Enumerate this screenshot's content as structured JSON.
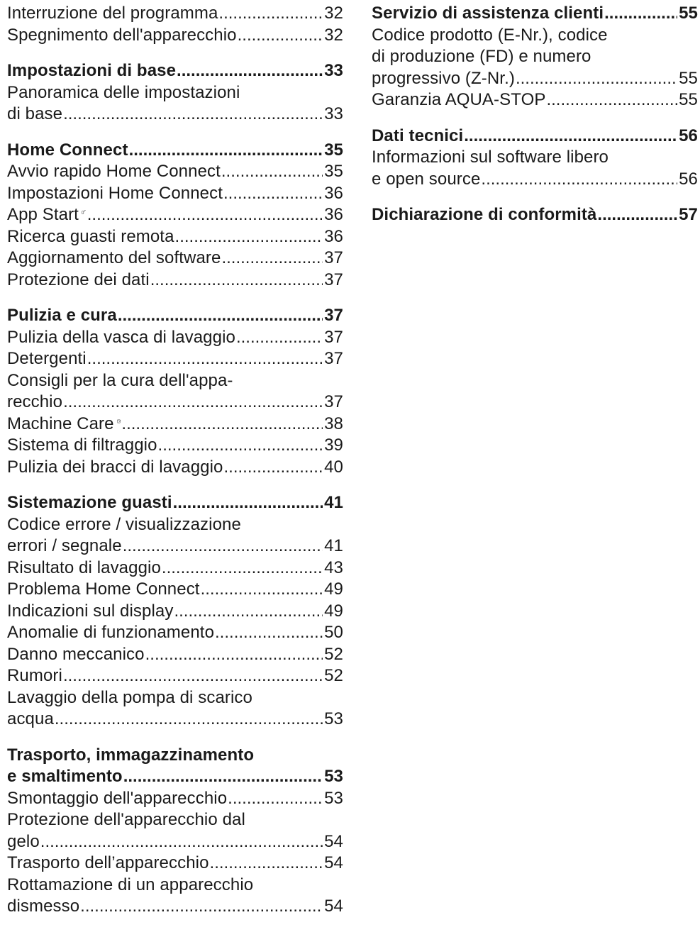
{
  "left_column": [
    {
      "entries": [
        {
          "lines": [],
          "last": "Interruzione del programma",
          "page": "32"
        },
        {
          "lines": [],
          "last": "Spegnimento dell'apparecchio",
          "page": "32"
        }
      ]
    },
    {
      "heading": {
        "lines": [],
        "last": "Impostazioni di base",
        "page": "33"
      },
      "entries": [
        {
          "lines": [
            "Panoramica delle impostazioni"
          ],
          "last": "di base",
          "page": "33"
        }
      ]
    },
    {
      "heading": {
        "lines": [],
        "last": "Home Connect",
        "page": "35"
      },
      "entries": [
        {
          "lines": [],
          "last": "Avvio rapido Home Connect",
          "page": "35"
        },
        {
          "lines": [],
          "last": "Impostazioni Home Connect",
          "page": "36"
        },
        {
          "lines": [],
          "last": "App Start",
          "page": "36",
          "icon": "remote-start-icon"
        },
        {
          "lines": [],
          "last": "Ricerca guasti remota",
          "page": "36"
        },
        {
          "lines": [],
          "last": "Aggiornamento del software",
          "page": "37"
        },
        {
          "lines": [],
          "last": "Protezione dei dati",
          "page": "37"
        }
      ]
    },
    {
      "heading": {
        "lines": [],
        "last": "Pulizia e cura",
        "page": "37"
      },
      "entries": [
        {
          "lines": [],
          "last": "Pulizia della vasca di lavaggio",
          "page": "37"
        },
        {
          "lines": [],
          "last": "Detergenti",
          "page": "37"
        },
        {
          "lines": [
            "Consigli per la cura dell'appa-"
          ],
          "last": "recchio",
          "page": "37"
        },
        {
          "lines": [],
          "last": "Machine Care",
          "page": "38",
          "icon": "machine-care-icon"
        },
        {
          "lines": [],
          "last": "Sistema di filtraggio",
          "page": "39"
        },
        {
          "lines": [],
          "last": "Pulizia dei bracci di lavaggio",
          "page": "40"
        }
      ]
    },
    {
      "heading": {
        "lines": [],
        "last": "Sistemazione guasti",
        "page": "41"
      },
      "entries": [
        {
          "lines": [
            "Codice errore / visualizzazione"
          ],
          "last": "errori / segnale",
          "page": "41"
        },
        {
          "lines": [],
          "last": "Risultato di lavaggio",
          "page": "43"
        },
        {
          "lines": [],
          "last": "Problema Home Connect",
          "page": "49"
        },
        {
          "lines": [],
          "last": "Indicazioni sul display",
          "page": "49"
        },
        {
          "lines": [],
          "last": "Anomalie di funzionamento",
          "page": "50"
        },
        {
          "lines": [],
          "last": "Danno meccanico",
          "page": "52"
        },
        {
          "lines": [],
          "last": "Rumori",
          "page": "52"
        },
        {
          "lines": [
            "Lavaggio della pompa di scarico"
          ],
          "last": "acqua",
          "page": "53"
        }
      ]
    },
    {
      "heading": {
        "lines": [
          "Trasporto, immagazzinamento"
        ],
        "last": "e smaltimento",
        "page": "53"
      },
      "entries": [
        {
          "lines": [],
          "last": "Smontaggio dell'apparecchio",
          "page": "53"
        },
        {
          "lines": [
            "Protezione dell'apparecchio dal"
          ],
          "last": "gelo",
          "page": "54"
        },
        {
          "lines": [],
          "last": "Trasporto dell’apparecchio",
          "page": "54"
        },
        {
          "lines": [
            "Rottamazione di un apparecchio"
          ],
          "last": "dismesso",
          "page": "54"
        }
      ]
    }
  ],
  "right_column": [
    {
      "heading": {
        "lines": [],
        "last": "Servizio di assistenza clienti",
        "page": "55"
      },
      "entries": [
        {
          "lines": [
            "Codice prodotto (E-Nr.), codice",
            "di produzione (FD) e numero"
          ],
          "last": "progressivo (Z-Nr.)",
          "page": "55"
        },
        {
          "lines": [],
          "last": "Garanzia AQUA-STOP",
          "page": "55"
        }
      ]
    },
    {
      "heading": {
        "lines": [],
        "last": "Dati tecnici",
        "page": "56"
      },
      "entries": [
        {
          "lines": [
            "Informazioni sul software libero"
          ],
          "last": "e open source",
          "page": "56"
        }
      ]
    },
    {
      "heading": {
        "lines": [],
        "last": "Dichiarazione di conformità",
        "page": "57"
      },
      "entries": []
    }
  ]
}
